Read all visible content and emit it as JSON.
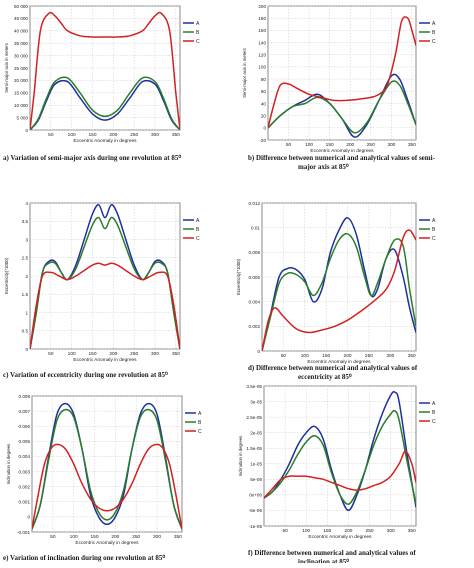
{
  "chart_data": [
    {
      "id": "a",
      "type": "line",
      "caption": [
        "a) Variation of semi-major axis during one revolution at 85⁰"
      ],
      "xlabel": "Eccentric Anomaly in degrees",
      "ylabel": "Semi-major axis in meters",
      "xlim": [
        0,
        360
      ],
      "ylim": [
        0,
        50000
      ],
      "xticks": [
        50,
        100,
        150,
        200,
        250,
        300,
        350
      ],
      "yticks": [
        0,
        5000,
        10000,
        15000,
        20000,
        25000,
        30000,
        35000,
        40000,
        45000,
        50000
      ],
      "ytick_labels": [
        "0",
        "5 000",
        "10 000",
        "15 000",
        "20 000",
        "25 000",
        "30 000",
        "35 000",
        "40 000",
        "45 000",
        "50 000"
      ],
      "legend": [
        "A",
        "B",
        "C"
      ],
      "legend_position": "top-right",
      "series": [
        {
          "name": "A",
          "color": "#1f2f9e",
          "x": [
            0,
            20,
            40,
            60,
            90,
            120,
            150,
            180,
            210,
            240,
            270,
            300,
            320,
            340,
            360
          ],
          "y": [
            0,
            4000,
            12000,
            18500,
            19500,
            13000,
            6500,
            4000,
            6500,
            13000,
            19500,
            18500,
            12000,
            4000,
            0
          ]
        },
        {
          "name": "B",
          "color": "#2a7d2a",
          "x": [
            0,
            20,
            40,
            60,
            90,
            120,
            150,
            180,
            210,
            240,
            270,
            300,
            320,
            340,
            360
          ],
          "y": [
            0,
            4500,
            13000,
            19500,
            21000,
            15000,
            8000,
            5500,
            8000,
            15000,
            21000,
            19500,
            13000,
            4500,
            0
          ]
        },
        {
          "name": "C",
          "color": "#d42020",
          "x": [
            0,
            10,
            25,
            45,
            60,
            75,
            90,
            120,
            150,
            180,
            210,
            240,
            270,
            285,
            300,
            315,
            335,
            350,
            360
          ],
          "y": [
            0,
            15000,
            40000,
            47000,
            46000,
            43000,
            40000,
            38000,
            37500,
            37500,
            37500,
            38000,
            40000,
            43000,
            46000,
            47000,
            40000,
            15000,
            0
          ]
        }
      ]
    },
    {
      "id": "b",
      "type": "line",
      "caption": [
        "b) Difference between numerical and analytical values of semi-",
        "major axis at 85⁰"
      ],
      "xlabel": "Eccentric Anomaly in degrees",
      "ylabel": "Semi-major axis in meters",
      "xlim": [
        0,
        360
      ],
      "ylim": [
        -20,
        200
      ],
      "xticks": [
        50,
        100,
        150,
        200,
        250,
        300,
        350
      ],
      "yticks": [
        -20,
        0,
        20,
        40,
        60,
        80,
        100,
        120,
        140,
        160,
        180,
        200
      ],
      "legend": [
        "A",
        "B",
        "C"
      ],
      "legend_position": "top-right",
      "series": [
        {
          "name": "A",
          "color": "#1f2f9e",
          "x": [
            0,
            30,
            60,
            90,
            120,
            150,
            180,
            210,
            240,
            270,
            300,
            320,
            340,
            360
          ],
          "y": [
            0,
            20,
            35,
            45,
            55,
            40,
            15,
            -15,
            5,
            45,
            85,
            80,
            45,
            5
          ]
        },
        {
          "name": "B",
          "color": "#2a7d2a",
          "x": [
            0,
            30,
            60,
            90,
            120,
            150,
            180,
            210,
            240,
            270,
            300,
            320,
            340,
            360
          ],
          "y": [
            0,
            20,
            35,
            40,
            50,
            40,
            15,
            -8,
            8,
            45,
            75,
            70,
            40,
            5
          ]
        },
        {
          "name": "C",
          "color": "#d42020",
          "x": [
            0,
            15,
            30,
            50,
            70,
            100,
            130,
            160,
            190,
            220,
            250,
            270,
            290,
            310,
            325,
            340,
            350,
            360
          ],
          "y": [
            0,
            40,
            70,
            72,
            65,
            55,
            50,
            45,
            45,
            47,
            50,
            55,
            70,
            120,
            175,
            180,
            160,
            135
          ]
        }
      ]
    },
    {
      "id": "c",
      "type": "line",
      "caption": [
        "c) Variation of eccentricity during one revolution at 85⁰"
      ],
      "xlabel": "Eccentric Anomaly in degrees",
      "ylabel": "Eccentricity(*1000)",
      "xlim": [
        0,
        360
      ],
      "ylim": [
        0,
        4
      ],
      "xticks": [
        50,
        100,
        150,
        200,
        250,
        300,
        350
      ],
      "yticks": [
        0,
        0.5,
        1,
        1.5,
        2,
        2.5,
        3,
        3.5,
        4
      ],
      "legend": [
        "A",
        "B",
        "C"
      ],
      "legend_position": "top-right",
      "series": [
        {
          "name": "A",
          "color": "#1f2f9e",
          "x": [
            0,
            15,
            30,
            45,
            60,
            75,
            90,
            110,
            130,
            150,
            165,
            180,
            195,
            210,
            230,
            250,
            270,
            285,
            300,
            315,
            330,
            345,
            360
          ],
          "y": [
            0,
            1,
            2.1,
            2.4,
            2.4,
            2.1,
            1.9,
            2.3,
            3,
            3.7,
            3.95,
            3.6,
            3.95,
            3.7,
            3,
            2.3,
            1.9,
            2.1,
            2.4,
            2.4,
            2.1,
            1,
            0
          ]
        },
        {
          "name": "B",
          "color": "#2a7d2a",
          "x": [
            0,
            15,
            30,
            45,
            60,
            75,
            90,
            110,
            130,
            150,
            165,
            180,
            195,
            210,
            230,
            250,
            270,
            285,
            300,
            315,
            330,
            345,
            360
          ],
          "y": [
            0,
            1,
            2.1,
            2.35,
            2.35,
            2.1,
            1.9,
            2.2,
            2.8,
            3.4,
            3.6,
            3.3,
            3.6,
            3.4,
            2.8,
            2.2,
            1.9,
            2.1,
            2.35,
            2.35,
            2.1,
            1,
            0
          ]
        },
        {
          "name": "C",
          "color": "#d42020",
          "x": [
            0,
            15,
            30,
            50,
            70,
            90,
            110,
            130,
            150,
            165,
            180,
            195,
            210,
            230,
            250,
            270,
            290,
            310,
            330,
            345,
            360
          ],
          "y": [
            0,
            1.2,
            2,
            2.1,
            2,
            1.9,
            2,
            2.15,
            2.3,
            2.35,
            2.3,
            2.35,
            2.3,
            2.15,
            2,
            1.9,
            2,
            2.1,
            2,
            1.2,
            0
          ]
        }
      ]
    },
    {
      "id": "d",
      "type": "line",
      "caption": [
        "d) Difference between numerical and analytical values of",
        "eccentricity at 85⁰"
      ],
      "xlabel": "Eccentric Anomaly in degrees",
      "ylabel": "Eccentricity(*1000)",
      "xlim": [
        0,
        360
      ],
      "ylim": [
        0,
        0.012
      ],
      "xticks": [
        50,
        100,
        150,
        200,
        250,
        300,
        350
      ],
      "yticks": [
        0,
        0.002,
        0.004,
        0.006,
        0.008,
        0.01,
        0.012
      ],
      "legend": [
        "A",
        "B",
        "C"
      ],
      "legend_position": "top-right",
      "series": [
        {
          "name": "A",
          "color": "#1f2f9e",
          "x": [
            0,
            20,
            40,
            60,
            80,
            100,
            120,
            140,
            160,
            180,
            200,
            220,
            240,
            255,
            270,
            290,
            310,
            330,
            345,
            360
          ],
          "y": [
            0,
            0.003,
            0.006,
            0.0067,
            0.0066,
            0.0058,
            0.004,
            0.005,
            0.008,
            0.0098,
            0.0108,
            0.0095,
            0.0065,
            0.0045,
            0.005,
            0.0075,
            0.0082,
            0.006,
            0.0035,
            0.0015
          ]
        },
        {
          "name": "B",
          "color": "#2a7d2a",
          "x": [
            0,
            20,
            40,
            60,
            80,
            100,
            120,
            140,
            160,
            180,
            200,
            220,
            240,
            255,
            270,
            290,
            310,
            330,
            345,
            360
          ],
          "y": [
            0,
            0.0028,
            0.0055,
            0.0063,
            0.0062,
            0.0056,
            0.0045,
            0.0055,
            0.0075,
            0.009,
            0.0095,
            0.0085,
            0.006,
            0.0045,
            0.0055,
            0.0075,
            0.009,
            0.0085,
            0.005,
            0.002
          ]
        },
        {
          "name": "C",
          "color": "#d42020",
          "x": [
            0,
            15,
            30,
            50,
            80,
            110,
            140,
            170,
            200,
            230,
            260,
            290,
            310,
            330,
            345,
            360
          ],
          "y": [
            0,
            0.0025,
            0.0035,
            0.0028,
            0.0018,
            0.0015,
            0.0017,
            0.002,
            0.0025,
            0.0032,
            0.004,
            0.005,
            0.0065,
            0.0092,
            0.0098,
            0.009
          ]
        }
      ]
    },
    {
      "id": "e",
      "type": "line",
      "caption": [
        "e) Variation of inclination during one revolution at 85⁰"
      ],
      "xlabel": "Eccentric Anomaly in degrees",
      "ylabel": "Inclination in degrees",
      "xlim": [
        0,
        360
      ],
      "ylim": [
        -0.001,
        0.008
      ],
      "xticks": [
        50,
        100,
        150,
        200,
        250,
        300,
        350
      ],
      "yticks": [
        -0.001,
        0,
        0.001,
        0.002,
        0.003,
        0.004,
        0.005,
        0.006,
        0.007,
        0.008
      ],
      "legend": [
        "A",
        "B",
        "C"
      ],
      "legend_position": "top-right",
      "series": [
        {
          "name": "A",
          "color": "#1f2f9e",
          "x": [
            0,
            20,
            40,
            60,
            80,
            100,
            120,
            140,
            160,
            180,
            200,
            220,
            240,
            260,
            280,
            300,
            320,
            340,
            360
          ],
          "y": [
            -0.0008,
            0.0008,
            0.004,
            0.0068,
            0.0075,
            0.0068,
            0.0045,
            0.0015,
            0,
            -0.0005,
            0,
            0.0015,
            0.0045,
            0.0068,
            0.0075,
            0.0068,
            0.004,
            0.0008,
            -0.0008
          ]
        },
        {
          "name": "B",
          "color": "#2a7d2a",
          "x": [
            0,
            20,
            40,
            60,
            80,
            100,
            120,
            140,
            160,
            180,
            200,
            220,
            240,
            260,
            280,
            300,
            320,
            340,
            360
          ],
          "y": [
            -0.0008,
            0.0008,
            0.0038,
            0.0064,
            0.0071,
            0.0066,
            0.0045,
            0.0018,
            0.0003,
            -0.0002,
            0.0003,
            0.0018,
            0.0045,
            0.0066,
            0.0071,
            0.0064,
            0.0038,
            0.0008,
            -0.0008
          ]
        },
        {
          "name": "C",
          "color": "#d42020",
          "x": [
            0,
            15,
            30,
            45,
            60,
            80,
            100,
            120,
            140,
            160,
            180,
            200,
            220,
            240,
            260,
            280,
            300,
            315,
            330,
            345,
            360
          ],
          "y": [
            -0.0008,
            0.0015,
            0.0035,
            0.0045,
            0.0048,
            0.0045,
            0.0035,
            0.0022,
            0.0012,
            0.0006,
            0.0004,
            0.0006,
            0.0012,
            0.0022,
            0.0035,
            0.0045,
            0.0048,
            0.0045,
            0.0035,
            0.0015,
            -0.0008
          ]
        }
      ]
    },
    {
      "id": "f",
      "type": "line",
      "caption": [
        "f) Difference between numerical and analytical values of",
        "inclination at 85⁰"
      ],
      "xlabel": "Eccentric Anomaly in degrees",
      "ylabel": "Inclination in degrees",
      "xlim": [
        0,
        360
      ],
      "ylim": [
        -1e-05,
        3.5e-05
      ],
      "xticks": [
        50,
        100,
        150,
        200,
        250,
        300,
        350
      ],
      "yticks": [
        -1e-05,
        -5e-06,
        0,
        5e-06,
        1e-05,
        1.5e-05,
        2e-05,
        2.5e-05,
        3e-05,
        3.5e-05
      ],
      "ytick_labels": [
        "-1e-05",
        "-5e-06",
        "0e+00",
        "5e-06",
        "1e-05",
        "1.5e-05",
        "2e-05",
        "2.5e-05",
        "3e-05",
        "3.5e-05"
      ],
      "legend": [
        "A",
        "B",
        "C"
      ],
      "legend_position": "top-right",
      "series": [
        {
          "name": "A",
          "color": "#1f2f9e",
          "x": [
            0,
            20,
            40,
            60,
            80,
            100,
            120,
            140,
            160,
            180,
            200,
            220,
            240,
            260,
            280,
            300,
            310,
            320,
            340,
            360
          ],
          "y": [
            -1e-06,
            1e-06,
            5e-06,
            1e-05,
            1.6e-05,
            2e-05,
            2.2e-05,
            1.8e-05,
            8e-06,
            0,
            -5e-06,
            0,
            8e-06,
            1.8e-05,
            2.6e-05,
            3.2e-05,
            3.3e-05,
            3e-05,
            1.2e-05,
            -4e-06
          ]
        },
        {
          "name": "B",
          "color": "#2a7d2a",
          "x": [
            0,
            20,
            40,
            60,
            80,
            100,
            120,
            140,
            160,
            180,
            200,
            220,
            240,
            260,
            280,
            300,
            310,
            320,
            340,
            360
          ],
          "y": [
            -1e-06,
            1e-06,
            4e-06,
            8e-06,
            1.3e-05,
            1.7e-05,
            1.9e-05,
            1.6e-05,
            7e-06,
            0,
            -3e-06,
            1e-06,
            8e-06,
            1.6e-05,
            2.2e-05,
            2.6e-05,
            2.7e-05,
            2.4e-05,
            1e-05,
            -3e-06
          ]
        },
        {
          "name": "C",
          "color": "#d42020",
          "x": [
            0,
            20,
            40,
            60,
            80,
            100,
            120,
            140,
            160,
            180,
            200,
            220,
            240,
            260,
            280,
            300,
            320,
            335,
            350,
            360
          ],
          "y": [
            -1e-06,
            2e-06,
            5e-06,
            6e-06,
            6e-06,
            6e-06,
            5.5e-06,
            5e-06,
            4e-06,
            3e-06,
            2e-06,
            1.5e-06,
            2e-06,
            3e-06,
            4e-06,
            6e-06,
            1e-05,
            1.4e-05,
            1e-05,
            4e-06
          ]
        }
      ]
    }
  ]
}
